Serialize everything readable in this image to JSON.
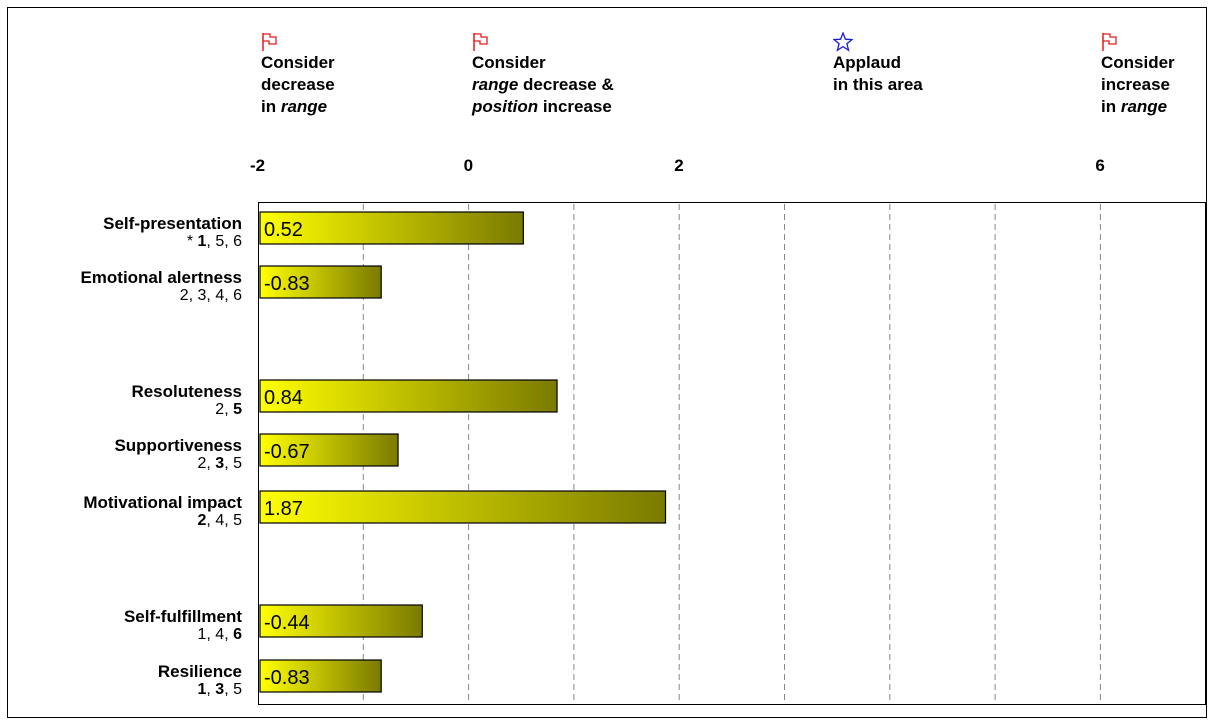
{
  "headers": [
    {
      "icon": "flag-icon",
      "color": "#e31c1c",
      "lines": [
        "Consider",
        "decrease",
        "in <i>range</i>"
      ]
    },
    {
      "icon": "flag-icon",
      "color": "#e31c1c",
      "lines": [
        "Consider",
        "<i>range</i> decrease &",
        "<i>position</i> increase"
      ]
    },
    {
      "icon": "star-icon",
      "color": "#1a1adb",
      "lines": [
        "Applaud",
        "in this area"
      ]
    },
    {
      "icon": "flag-icon",
      "color": "#e31c1c",
      "lines": [
        "Consider",
        "increase",
        "in <i>range</i>"
      ]
    }
  ],
  "chart_data": {
    "type": "bar",
    "orientation": "horizontal",
    "tick_labels": [
      "-2",
      "0",
      "2",
      "6"
    ],
    "xlim": [
      -2,
      6.5
    ],
    "grid": "vertical dashed",
    "categories": [
      {
        "name": "Self-presentation",
        "sub": "* <b>1</b>, 5, 6",
        "value": 0.52,
        "label": "0.52"
      },
      {
        "name": "Emotional alertness",
        "sub": "2, 3, 4, 6",
        "value": -0.83,
        "label": "-0.83"
      },
      {
        "name": "Resoluteness",
        "sub": "2, <b>5</b>",
        "value": 0.84,
        "label": "0.84"
      },
      {
        "name": "Supportiveness",
        "sub": "2, <b>3</b>, 5",
        "value": -0.67,
        "label": "-0.67"
      },
      {
        "name": "Motivational impact",
        "sub": "<b>2</b>, 4, 5",
        "value": 1.87,
        "label": "1.87"
      },
      {
        "name": "Self-fulfillment",
        "sub": "1, 4, <b>6</b>",
        "value": -0.44,
        "label": "-0.44"
      },
      {
        "name": "Resilience",
        "sub": "<b>1</b>, <b>3</b>, 5",
        "value": -0.83,
        "label": "-0.83"
      }
    ],
    "bar_colors": {
      "start": "#ffff00",
      "end": "#7a7a00"
    }
  }
}
